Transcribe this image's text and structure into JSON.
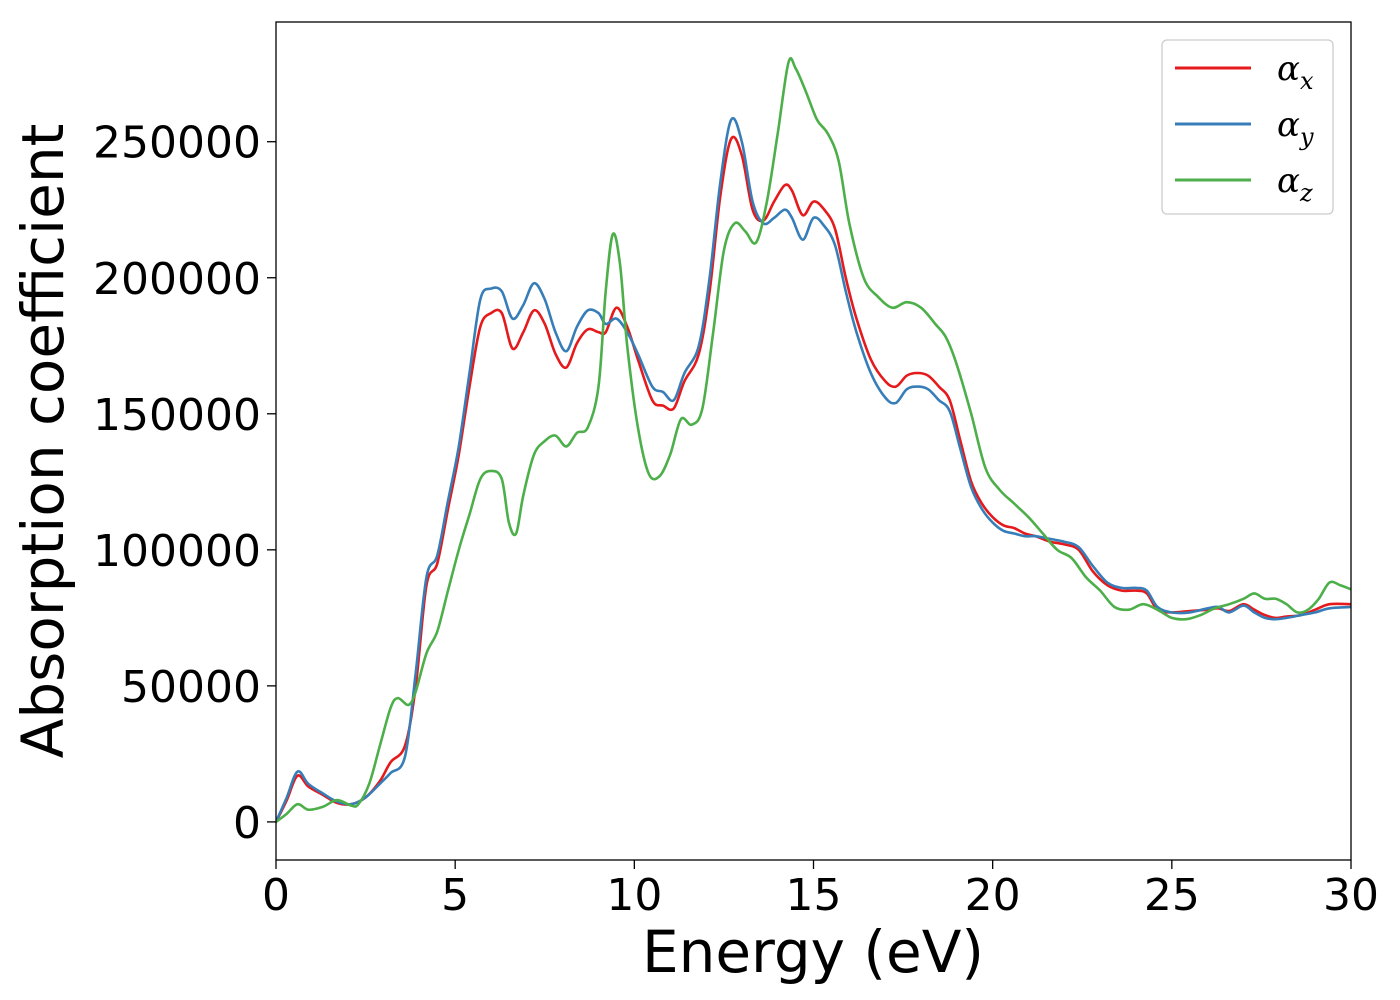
{
  "chart_data": {
    "type": "line",
    "title": "",
    "xlabel": "Energy (eV)",
    "ylabel": "Absorption coefficient",
    "xlim": [
      0,
      30
    ],
    "ylim": [
      -14000,
      294000
    ],
    "xticks": [
      0,
      5,
      10,
      15,
      20,
      25,
      30
    ],
    "xtick_labels": [
      "0",
      "5",
      "10",
      "15",
      "20",
      "25",
      "30"
    ],
    "yticks": [
      0,
      50000,
      100000,
      150000,
      200000,
      250000
    ],
    "ytick_labels": [
      "0",
      "50000",
      "100000",
      "150000",
      "200000",
      "250000"
    ],
    "grid": false,
    "legend_position": "top-right",
    "series": [
      {
        "name": "α_x",
        "legend_symbol": "α",
        "legend_subscript": "x",
        "color": "#e41a1c",
        "points": [
          [
            0,
            0
          ],
          [
            0.3,
            8000
          ],
          [
            0.6,
            17000
          ],
          [
            0.9,
            13000
          ],
          [
            1.3,
            10000
          ],
          [
            1.7,
            7000
          ],
          [
            2.1,
            6500
          ],
          [
            2.5,
            9000
          ],
          [
            2.9,
            15000
          ],
          [
            3.2,
            22000
          ],
          [
            3.6,
            28000
          ],
          [
            3.9,
            50000
          ],
          [
            4.2,
            87000
          ],
          [
            4.5,
            95000
          ],
          [
            4.8,
            115000
          ],
          [
            5.1,
            135000
          ],
          [
            5.4,
            160000
          ],
          [
            5.7,
            182000
          ],
          [
            6.0,
            187000
          ],
          [
            6.3,
            187000
          ],
          [
            6.6,
            174000
          ],
          [
            6.9,
            180000
          ],
          [
            7.2,
            188000
          ],
          [
            7.5,
            183000
          ],
          [
            7.8,
            172000
          ],
          [
            8.1,
            167000
          ],
          [
            8.4,
            176000
          ],
          [
            8.7,
            181000
          ],
          [
            9.0,
            180000
          ],
          [
            9.2,
            180000
          ],
          [
            9.5,
            189000
          ],
          [
            9.8,
            182000
          ],
          [
            10.1,
            170000
          ],
          [
            10.5,
            155000
          ],
          [
            10.8,
            153000
          ],
          [
            11.1,
            152000
          ],
          [
            11.4,
            162000
          ],
          [
            11.8,
            172000
          ],
          [
            12.1,
            195000
          ],
          [
            12.4,
            230000
          ],
          [
            12.7,
            251000
          ],
          [
            13.0,
            245000
          ],
          [
            13.3,
            225000
          ],
          [
            13.6,
            221000
          ],
          [
            13.9,
            228000
          ],
          [
            14.2,
            234000
          ],
          [
            14.4,
            232000
          ],
          [
            14.7,
            223000
          ],
          [
            15.0,
            228000
          ],
          [
            15.3,
            225000
          ],
          [
            15.6,
            218000
          ],
          [
            15.9,
            200000
          ],
          [
            16.2,
            185000
          ],
          [
            16.6,
            170000
          ],
          [
            17.0,
            162000
          ],
          [
            17.3,
            160000
          ],
          [
            17.6,
            164000
          ],
          [
            17.9,
            165000
          ],
          [
            18.2,
            164000
          ],
          [
            18.5,
            160000
          ],
          [
            18.8,
            155000
          ],
          [
            19.1,
            140000
          ],
          [
            19.4,
            125000
          ],
          [
            19.7,
            117000
          ],
          [
            20.0,
            112000
          ],
          [
            20.3,
            109000
          ],
          [
            20.6,
            108000
          ],
          [
            20.9,
            106000
          ],
          [
            21.2,
            105000
          ],
          [
            21.6,
            103000
          ],
          [
            22.0,
            102000
          ],
          [
            22.4,
            100000
          ],
          [
            22.8,
            92000
          ],
          [
            23.2,
            87000
          ],
          [
            23.6,
            85000
          ],
          [
            24.0,
            85000
          ],
          [
            24.3,
            84000
          ],
          [
            24.6,
            78000
          ],
          [
            25.0,
            77000
          ],
          [
            25.5,
            77500
          ],
          [
            26.0,
            78000
          ],
          [
            26.3,
            78500
          ],
          [
            26.6,
            77500
          ],
          [
            27.0,
            80000
          ],
          [
            27.3,
            78000
          ],
          [
            27.6,
            76000
          ],
          [
            27.9,
            75000
          ],
          [
            28.2,
            75500
          ],
          [
            28.6,
            76000
          ],
          [
            29.0,
            78000
          ],
          [
            29.4,
            80000
          ],
          [
            30.0,
            80000
          ]
        ]
      },
      {
        "name": "α_y",
        "legend_symbol": "α",
        "legend_subscript": "y",
        "color": "#377eb8",
        "points": [
          [
            0,
            0
          ],
          [
            0.3,
            9000
          ],
          [
            0.6,
            18500
          ],
          [
            0.9,
            14000
          ],
          [
            1.3,
            10500
          ],
          [
            1.7,
            7500
          ],
          [
            2.1,
            6500
          ],
          [
            2.5,
            9000
          ],
          [
            2.9,
            14000
          ],
          [
            3.2,
            18000
          ],
          [
            3.6,
            24000
          ],
          [
            3.9,
            55000
          ],
          [
            4.2,
            90000
          ],
          [
            4.5,
            98000
          ],
          [
            4.8,
            118000
          ],
          [
            5.1,
            138000
          ],
          [
            5.4,
            165000
          ],
          [
            5.7,
            192000
          ],
          [
            6.0,
            196000
          ],
          [
            6.3,
            195000
          ],
          [
            6.6,
            185000
          ],
          [
            6.9,
            190000
          ],
          [
            7.2,
            198000
          ],
          [
            7.5,
            192000
          ],
          [
            7.8,
            180000
          ],
          [
            8.1,
            173000
          ],
          [
            8.4,
            182000
          ],
          [
            8.7,
            188000
          ],
          [
            9.0,
            187000
          ],
          [
            9.2,
            183000
          ],
          [
            9.5,
            185000
          ],
          [
            9.8,
            180000
          ],
          [
            10.1,
            172000
          ],
          [
            10.5,
            160000
          ],
          [
            10.8,
            158000
          ],
          [
            11.1,
            155000
          ],
          [
            11.4,
            165000
          ],
          [
            11.8,
            175000
          ],
          [
            12.1,
            200000
          ],
          [
            12.4,
            235000
          ],
          [
            12.7,
            258000
          ],
          [
            13.0,
            250000
          ],
          [
            13.3,
            228000
          ],
          [
            13.6,
            220000
          ],
          [
            13.9,
            222000
          ],
          [
            14.2,
            225000
          ],
          [
            14.4,
            222000
          ],
          [
            14.7,
            214000
          ],
          [
            15.0,
            222000
          ],
          [
            15.3,
            219000
          ],
          [
            15.6,
            212000
          ],
          [
            15.9,
            195000
          ],
          [
            16.2,
            180000
          ],
          [
            16.6,
            165000
          ],
          [
            17.0,
            156000
          ],
          [
            17.3,
            154000
          ],
          [
            17.6,
            159000
          ],
          [
            17.9,
            160000
          ],
          [
            18.2,
            159000
          ],
          [
            18.5,
            155000
          ],
          [
            18.8,
            151000
          ],
          [
            19.1,
            137000
          ],
          [
            19.4,
            123000
          ],
          [
            19.7,
            115000
          ],
          [
            20.0,
            110000
          ],
          [
            20.3,
            107000
          ],
          [
            20.6,
            106000
          ],
          [
            20.9,
            105000
          ],
          [
            21.2,
            105000
          ],
          [
            21.6,
            104000
          ],
          [
            22.0,
            103000
          ],
          [
            22.4,
            101000
          ],
          [
            22.8,
            94000
          ],
          [
            23.2,
            88000
          ],
          [
            23.6,
            86000
          ],
          [
            24.0,
            86000
          ],
          [
            24.3,
            85000
          ],
          [
            24.6,
            79000
          ],
          [
            25.0,
            77000
          ],
          [
            25.5,
            77000
          ],
          [
            26.0,
            78500
          ],
          [
            26.3,
            79000
          ],
          [
            26.6,
            77000
          ],
          [
            27.0,
            79500
          ],
          [
            27.3,
            77000
          ],
          [
            27.6,
            75000
          ],
          [
            27.9,
            74500
          ],
          [
            28.2,
            75000
          ],
          [
            28.6,
            76000
          ],
          [
            29.0,
            77000
          ],
          [
            29.4,
            78500
          ],
          [
            30.0,
            79000
          ]
        ]
      },
      {
        "name": "α_z",
        "legend_symbol": "α",
        "legend_subscript": "z",
        "color": "#4daf4a",
        "points": [
          [
            0,
            0
          ],
          [
            0.3,
            3000
          ],
          [
            0.6,
            6500
          ],
          [
            0.9,
            4500
          ],
          [
            1.3,
            5500
          ],
          [
            1.7,
            8000
          ],
          [
            2.1,
            6000
          ],
          [
            2.3,
            6500
          ],
          [
            2.6,
            14000
          ],
          [
            2.9,
            28000
          ],
          [
            3.2,
            42000
          ],
          [
            3.4,
            45500
          ],
          [
            3.7,
            43000
          ],
          [
            3.9,
            48000
          ],
          [
            4.2,
            62000
          ],
          [
            4.5,
            70000
          ],
          [
            4.8,
            85000
          ],
          [
            5.1,
            100000
          ],
          [
            5.4,
            113000
          ],
          [
            5.7,
            126000
          ],
          [
            6.0,
            129000
          ],
          [
            6.3,
            126000
          ],
          [
            6.5,
            110000
          ],
          [
            6.7,
            106000
          ],
          [
            6.9,
            120000
          ],
          [
            7.2,
            135000
          ],
          [
            7.5,
            140000
          ],
          [
            7.8,
            142000
          ],
          [
            8.1,
            138000
          ],
          [
            8.4,
            143000
          ],
          [
            8.7,
            145000
          ],
          [
            9.0,
            160000
          ],
          [
            9.2,
            195000
          ],
          [
            9.4,
            216000
          ],
          [
            9.6,
            205000
          ],
          [
            9.8,
            175000
          ],
          [
            10.1,
            145000
          ],
          [
            10.4,
            128000
          ],
          [
            10.7,
            127000
          ],
          [
            11.0,
            135000
          ],
          [
            11.3,
            148000
          ],
          [
            11.6,
            146000
          ],
          [
            11.9,
            152000
          ],
          [
            12.2,
            180000
          ],
          [
            12.5,
            210000
          ],
          [
            12.8,
            220000
          ],
          [
            13.1,
            217000
          ],
          [
            13.4,
            213000
          ],
          [
            13.7,
            228000
          ],
          [
            14.0,
            253000
          ],
          [
            14.3,
            279000
          ],
          [
            14.5,
            277000
          ],
          [
            14.8,
            268000
          ],
          [
            15.1,
            258000
          ],
          [
            15.4,
            253000
          ],
          [
            15.7,
            243000
          ],
          [
            16.0,
            220000
          ],
          [
            16.4,
            200000
          ],
          [
            16.8,
            193000
          ],
          [
            17.2,
            189000
          ],
          [
            17.6,
            191000
          ],
          [
            18.0,
            189000
          ],
          [
            18.4,
            183000
          ],
          [
            18.7,
            178000
          ],
          [
            19.0,
            168000
          ],
          [
            19.4,
            150000
          ],
          [
            19.8,
            130000
          ],
          [
            20.2,
            122000
          ],
          [
            20.6,
            117000
          ],
          [
            21.0,
            112000
          ],
          [
            21.4,
            106000
          ],
          [
            21.8,
            100000
          ],
          [
            22.2,
            97000
          ],
          [
            22.6,
            90000
          ],
          [
            23.0,
            85000
          ],
          [
            23.4,
            79000
          ],
          [
            23.8,
            78000
          ],
          [
            24.2,
            80000
          ],
          [
            24.6,
            78000
          ],
          [
            25.0,
            75000
          ],
          [
            25.4,
            74500
          ],
          [
            25.8,
            76000
          ],
          [
            26.2,
            78500
          ],
          [
            26.6,
            80000
          ],
          [
            27.0,
            82000
          ],
          [
            27.3,
            84000
          ],
          [
            27.6,
            82000
          ],
          [
            27.9,
            82000
          ],
          [
            28.2,
            80000
          ],
          [
            28.5,
            77000
          ],
          [
            28.8,
            78000
          ],
          [
            29.1,
            82000
          ],
          [
            29.4,
            88000
          ],
          [
            29.7,
            87000
          ],
          [
            30.0,
            85500
          ]
        ]
      }
    ]
  }
}
